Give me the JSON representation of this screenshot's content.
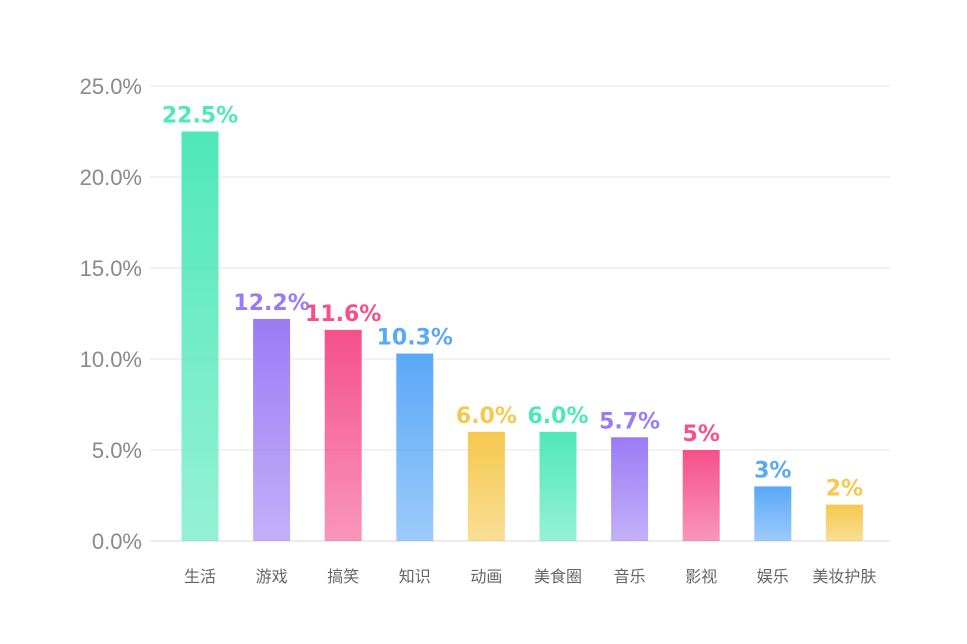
{
  "chart_data": {
    "type": "bar",
    "title": "",
    "xlabel": "",
    "ylabel": "",
    "ylim": [
      0,
      25
    ],
    "grid": true,
    "y_ticks": [
      {
        "value": 0,
        "label": "0.0%"
      },
      {
        "value": 5,
        "label": "5.0%"
      },
      {
        "value": 10,
        "label": "10.0%"
      },
      {
        "value": 15,
        "label": "15.0%"
      },
      {
        "value": 20,
        "label": "20.0%"
      },
      {
        "value": 25,
        "label": "25.0%"
      }
    ],
    "categories": [
      "生活",
      "游戏",
      "搞笑",
      "知识",
      "动画",
      "美食圈",
      "音乐",
      "影视",
      "娱乐",
      "美妆护肤"
    ],
    "values": [
      22.5,
      12.2,
      11.6,
      10.3,
      6.0,
      6.0,
      5.7,
      5,
      3,
      2
    ],
    "data_labels": [
      "22.5%",
      "12.2%",
      "11.6%",
      "10.3%",
      "6.0%",
      "6.0%",
      "5.7%",
      "5%",
      "3%",
      "2%"
    ],
    "colors": [
      "#4fe8b8",
      "#9b7bf5",
      "#f5508a",
      "#5aa8f8",
      "#f5c84e",
      "#4fe8b8",
      "#9b7bf5",
      "#f5508a",
      "#5aa8f8",
      "#f5c84e"
    ]
  }
}
